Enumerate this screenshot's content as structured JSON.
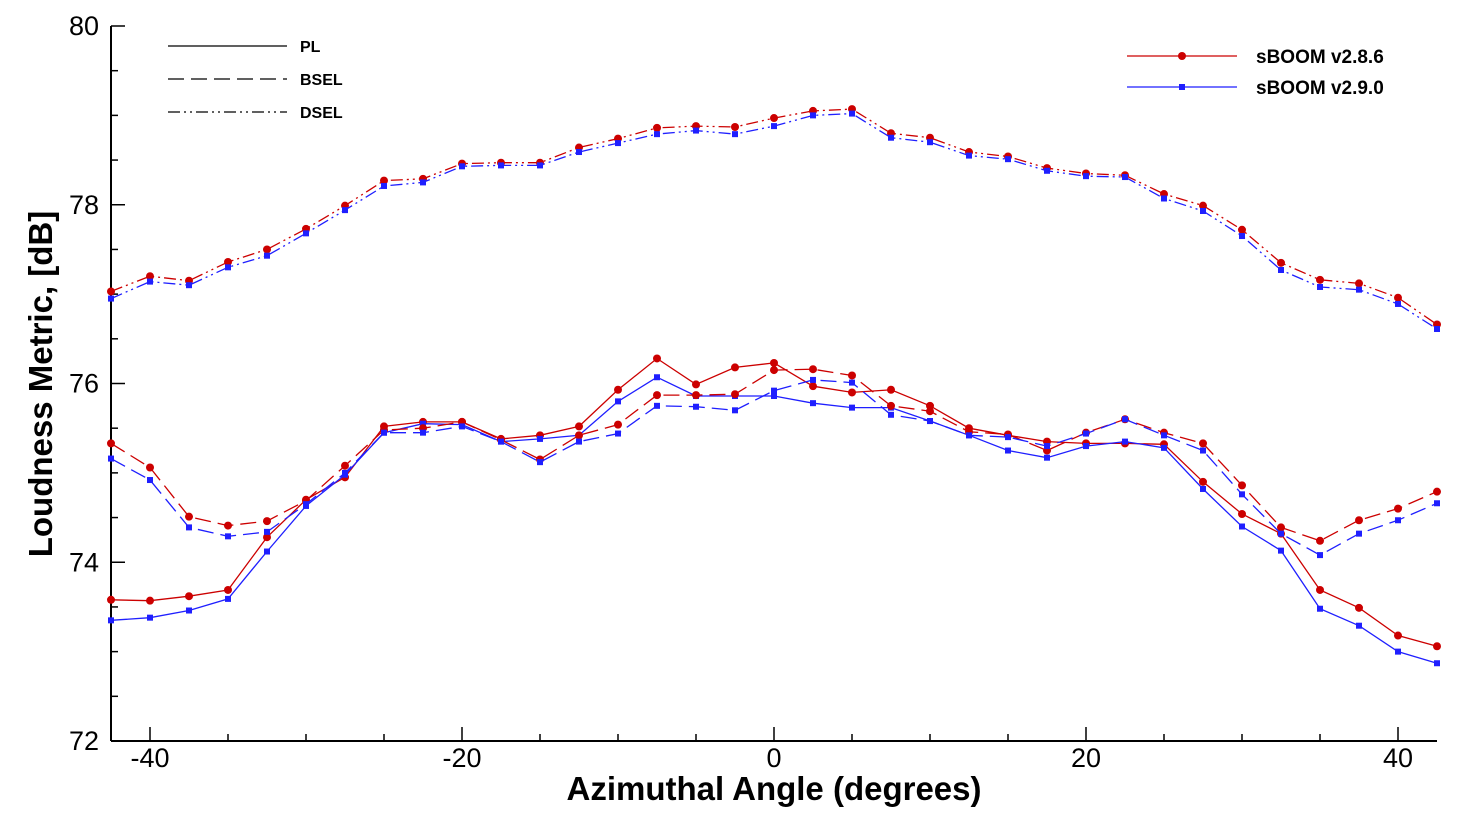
{
  "chart_data": {
    "type": "line",
    "xlabel": "Azimuthal Angle (degrees)",
    "ylabel": "Loudness Metric, [dB]",
    "xlim": [
      -42.5,
      42.5
    ],
    "ylim": [
      72,
      80
    ],
    "xticks": [
      -40,
      -20,
      0,
      20,
      40
    ],
    "xtick_labels": [
      "-40",
      "-20",
      "0",
      "20",
      "40"
    ],
    "yticks": [
      72,
      74,
      76,
      78,
      80
    ],
    "ytick_labels": [
      "72",
      "74",
      "76",
      "78",
      "80"
    ],
    "grid": false,
    "legend_metrics_position": "top-left",
    "legend_versions_position": "top-right",
    "metric_legend": [
      {
        "label": "PL",
        "dash": "solid"
      },
      {
        "label": "BSEL",
        "dash": "dashed"
      },
      {
        "label": "DSEL",
        "dash": "dash-dot-dot"
      }
    ],
    "version_legend": [
      {
        "label": "sBOOM v2.8.6",
        "color": "#cc0000",
        "marker": "circle"
      },
      {
        "label": "sBOOM v2.9.0",
        "color": "#1f1fff",
        "marker": "square"
      }
    ],
    "x": [
      -42.5,
      -40,
      -37.5,
      -35,
      -32.5,
      -30,
      -27.5,
      -25,
      -22.5,
      -20,
      -17.5,
      -15,
      -12.5,
      -10,
      -7.5,
      -5,
      -2.5,
      0,
      2.5,
      5,
      7.5,
      10,
      12.5,
      15,
      17.5,
      20,
      22.5,
      25,
      27.5,
      30,
      32.5,
      35,
      37.5,
      40,
      42.5
    ],
    "series": [
      {
        "name": "sBOOM v2.8.6",
        "metric": "PL",
        "color": "#cc0000",
        "marker": "circle",
        "dash": "solid",
        "values": [
          73.58,
          73.57,
          73.62,
          73.69,
          74.28,
          74.7,
          74.95,
          75.52,
          75.57,
          75.57,
          75.38,
          75.42,
          75.52,
          75.93,
          76.28,
          75.99,
          76.18,
          76.23,
          75.97,
          75.9,
          75.93,
          75.75,
          75.5,
          75.42,
          75.35,
          75.33,
          75.33,
          75.32,
          74.9,
          74.54,
          74.32,
          73.69,
          73.49,
          73.18,
          73.06
        ]
      },
      {
        "name": "sBOOM v2.9.0",
        "metric": "PL",
        "color": "#1f1fff",
        "marker": "square",
        "dash": "solid",
        "values": [
          73.35,
          73.38,
          73.46,
          73.59,
          74.12,
          74.63,
          74.98,
          75.45,
          75.55,
          75.54,
          75.35,
          75.38,
          75.42,
          75.8,
          76.07,
          75.86,
          75.86,
          75.86,
          75.78,
          75.73,
          75.73,
          75.58,
          75.42,
          75.25,
          75.17,
          75.3,
          75.35,
          75.28,
          74.82,
          74.4,
          74.13,
          73.48,
          73.29,
          73.0,
          72.87
        ]
      },
      {
        "name": "sBOOM v2.8.6",
        "metric": "BSEL",
        "color": "#cc0000",
        "marker": "circle",
        "dash": "dashed",
        "values": [
          75.33,
          75.06,
          74.51,
          74.41,
          74.46,
          74.69,
          75.08,
          75.48,
          75.5,
          75.57,
          75.37,
          75.15,
          75.42,
          75.54,
          75.87,
          75.87,
          75.88,
          76.15,
          76.16,
          76.09,
          75.75,
          75.69,
          75.46,
          75.43,
          75.25,
          75.45,
          75.6,
          75.45,
          75.33,
          74.86,
          74.39,
          74.24,
          74.47,
          74.6,
          74.79
        ]
      },
      {
        "name": "sBOOM v2.9.0",
        "metric": "BSEL",
        "color": "#1f1fff",
        "marker": "square",
        "dash": "dashed",
        "values": [
          75.16,
          74.92,
          74.39,
          74.29,
          74.34,
          74.65,
          75.0,
          75.45,
          75.45,
          75.52,
          75.35,
          75.12,
          75.35,
          75.44,
          75.75,
          75.74,
          75.7,
          75.92,
          76.04,
          76.01,
          75.65,
          75.58,
          75.42,
          75.4,
          75.3,
          75.44,
          75.6,
          75.42,
          75.25,
          74.76,
          74.32,
          74.08,
          74.32,
          74.47,
          74.66
        ]
      },
      {
        "name": "sBOOM v2.8.6",
        "metric": "DSEL",
        "color": "#cc0000",
        "marker": "circle",
        "dash": "dash-dot-dot",
        "values": [
          77.03,
          77.2,
          77.15,
          77.36,
          77.5,
          77.73,
          77.99,
          78.27,
          78.29,
          78.46,
          78.47,
          78.47,
          78.64,
          78.74,
          78.86,
          78.88,
          78.87,
          78.97,
          79.05,
          79.07,
          78.8,
          78.75,
          78.59,
          78.54,
          78.41,
          78.35,
          78.33,
          78.12,
          77.99,
          77.72,
          77.35,
          77.16,
          77.12,
          76.96,
          76.66
        ]
      },
      {
        "name": "sBOOM v2.9.0",
        "metric": "DSEL",
        "color": "#1f1fff",
        "marker": "square",
        "dash": "dash-dot-dot",
        "values": [
          76.95,
          77.14,
          77.1,
          77.3,
          77.43,
          77.68,
          77.94,
          78.21,
          78.25,
          78.43,
          78.44,
          78.44,
          78.59,
          78.69,
          78.79,
          78.83,
          78.79,
          78.88,
          79.0,
          79.02,
          78.75,
          78.7,
          78.55,
          78.51,
          78.38,
          78.32,
          78.31,
          78.07,
          77.93,
          77.65,
          77.27,
          77.08,
          77.05,
          76.89,
          76.61
        ]
      }
    ]
  }
}
